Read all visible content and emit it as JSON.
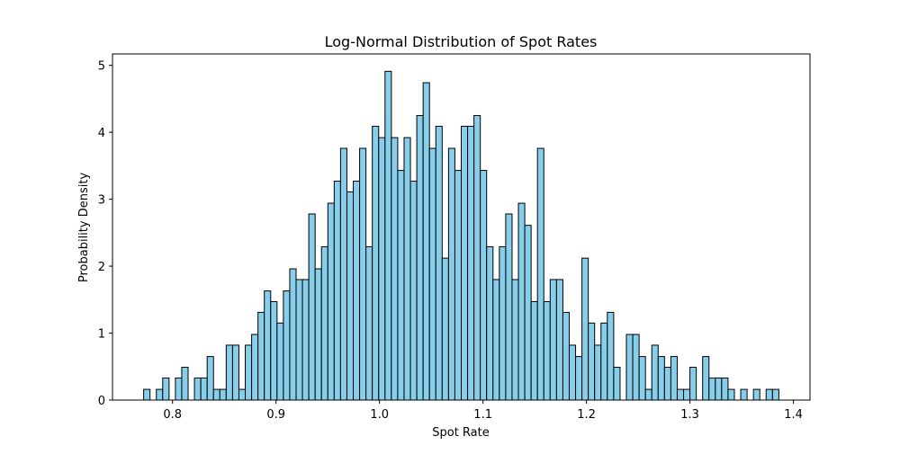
{
  "chart_data": {
    "type": "bar",
    "title": "Log-Normal Distribution of Spot Rates",
    "xlabel": "Spot Rate",
    "ylabel": "Probability Density",
    "xlim": [
      0.742,
      1.416
    ],
    "ylim": [
      0,
      5.17
    ],
    "x_ticks": [
      0.8,
      0.9,
      1.0,
      1.1,
      1.2,
      1.3,
      1.4
    ],
    "x_tick_labels": [
      "0.8",
      "0.9",
      "1.0",
      "1.1",
      "1.2",
      "1.3",
      "1.4"
    ],
    "y_ticks": [
      0,
      1,
      2,
      3,
      4,
      5
    ],
    "y_tick_labels": [
      "0",
      "1",
      "2",
      "3",
      "4",
      "5"
    ],
    "bins": 100,
    "range": [
      0.7721,
      1.3859
    ],
    "values": [
      0.16,
      0,
      0.16,
      0.33,
      0,
      0.33,
      0.49,
      0,
      0.33,
      0.33,
      0.65,
      0.16,
      0.16,
      0.82,
      0.82,
      0.16,
      0.82,
      0.98,
      1.31,
      1.63,
      1.47,
      1.15,
      1.63,
      1.96,
      1.8,
      1.8,
      2.78,
      1.96,
      2.29,
      2.94,
      3.27,
      3.76,
      3.11,
      3.27,
      3.76,
      2.29,
      4.09,
      3.92,
      4.91,
      3.92,
      3.43,
      3.92,
      3.27,
      4.25,
      4.74,
      3.76,
      4.09,
      2.12,
      3.76,
      3.43,
      4.09,
      4.09,
      4.25,
      3.43,
      2.29,
      1.8,
      2.29,
      2.78,
      1.8,
      2.94,
      2.61,
      1.47,
      3.76,
      1.47,
      1.8,
      1.8,
      1.31,
      0.82,
      0.65,
      2.12,
      1.15,
      0.82,
      1.15,
      1.31,
      0.49,
      0,
      0.98,
      0.98,
      0.65,
      0.16,
      0.82,
      0.65,
      0.49,
      0.65,
      0.16,
      0.16,
      0.49,
      0,
      0.65,
      0.33,
      0.33,
      0.33,
      0.16,
      0,
      0.16,
      0,
      0.16,
      0,
      0.16,
      0.16
    ],
    "bar_color": "#87ceeb",
    "edge_color": "#000000",
    "grid": false,
    "legend": false
  }
}
